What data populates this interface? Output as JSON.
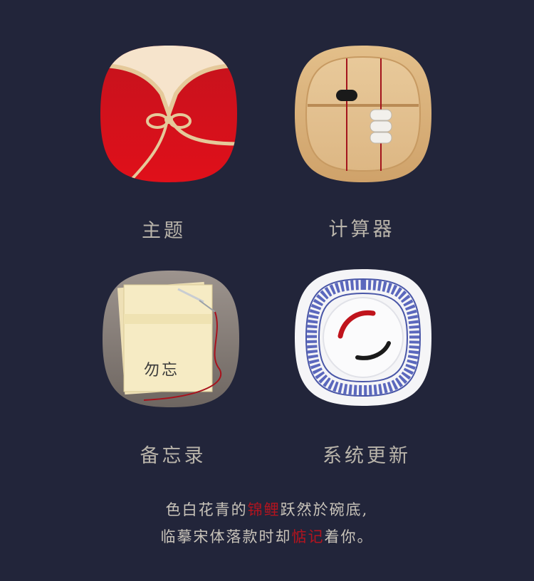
{
  "icons": [
    {
      "label": "主题",
      "icon": "qipao-theme-icon"
    },
    {
      "label": "计算器",
      "icon": "abacus-calculator-icon"
    },
    {
      "label": "备忘录",
      "icon": "paper-needle-memo-icon"
    },
    {
      "label": "系统更新",
      "icon": "koi-porcelain-bowl-icon"
    }
  ],
  "memo_note_text": "勿忘",
  "poem": {
    "line1": {
      "pre": "色白花青的",
      "highlight": "锦鲤",
      "post": "跃然於碗底,"
    },
    "line2": {
      "pre": "临摹宋体落款时却",
      "highlight": "惦记",
      "post": "着你。"
    }
  },
  "colors": {
    "background": "#22253a",
    "label": "#b9b4aa",
    "poem": "#c9c4ba",
    "highlight": "#b3141f"
  }
}
